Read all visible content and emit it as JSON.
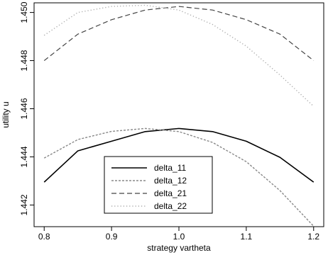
{
  "chart_data": {
    "type": "line",
    "xlabel": "strategy vartheta",
    "ylabel": "utility u",
    "xlim": [
      0.785,
      1.215
    ],
    "ylim": [
      1.4411,
      1.4504
    ],
    "xticks": [
      0.8,
      0.9,
      1.0,
      1.1,
      1.2
    ],
    "xtick_labels": [
      "0.8",
      "0.9",
      "1.0",
      "1.1",
      "1.2"
    ],
    "yticks": [
      1.442,
      1.444,
      1.446,
      1.448,
      1.45
    ],
    "ytick_labels": [
      "1.442",
      "1.444",
      "1.446",
      "1.448",
      "1.450"
    ],
    "grid": false,
    "legend_position": "bottom-center",
    "series": [
      {
        "name": "delta_11",
        "color": "#000000",
        "dash": "solid",
        "x": [
          0.8,
          0.85,
          0.9,
          0.95,
          1.0,
          1.05,
          1.1,
          1.15,
          1.2
        ],
        "y": [
          1.44295,
          1.44425,
          1.44465,
          1.44505,
          1.44518,
          1.44505,
          1.44465,
          1.44398,
          1.44295
        ]
      },
      {
        "name": "delta_12",
        "color": "#888888",
        "dash": "dashed-fine",
        "x": [
          0.8,
          0.85,
          0.9,
          0.95,
          1.0,
          1.05,
          1.1,
          1.15,
          1.2
        ],
        "y": [
          1.44395,
          1.44472,
          1.44506,
          1.44518,
          1.44505,
          1.4446,
          1.4438,
          1.4426,
          1.44112
        ]
      },
      {
        "name": "delta_21",
        "color": "#444444",
        "dash": "dashed",
        "x": [
          0.8,
          0.85,
          0.9,
          0.95,
          1.0,
          1.05,
          1.1,
          1.15,
          1.2
        ],
        "y": [
          1.448,
          1.4491,
          1.4497,
          1.4501,
          1.45025,
          1.4501,
          1.4497,
          1.4491,
          1.448
        ]
      },
      {
        "name": "delta_22",
        "color": "#aaaaaa",
        "dash": "dotted",
        "x": [
          0.8,
          0.85,
          0.9,
          0.95,
          1.0,
          1.05,
          1.1,
          1.15,
          1.2
        ],
        "y": [
          1.44905,
          1.45,
          1.45025,
          1.4503,
          1.4501,
          1.4495,
          1.4486,
          1.4474,
          1.4461
        ]
      }
    ]
  }
}
